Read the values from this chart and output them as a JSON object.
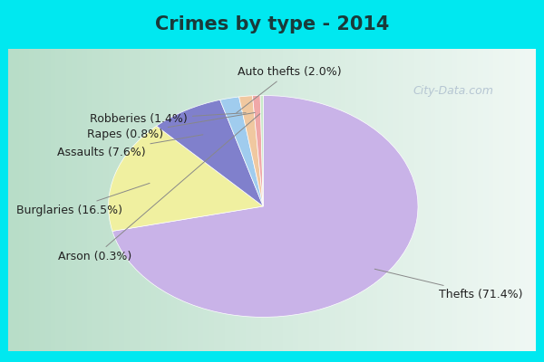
{
  "title": "Crimes by type - 2014",
  "slices": [
    {
      "label": "Thefts (71.4%)",
      "value": 71.4,
      "color": "#c9b3e8"
    },
    {
      "label": "Burglaries (16.5%)",
      "value": 16.5,
      "color": "#f0f0a0"
    },
    {
      "label": "Assaults (7.6%)",
      "value": 7.6,
      "color": "#8080cc"
    },
    {
      "label": "Auto thefts (2.0%)",
      "value": 2.0,
      "color": "#a0ccee"
    },
    {
      "label": "Robberies (1.4%)",
      "value": 1.4,
      "color": "#f0c8a0"
    },
    {
      "label": "Rapes (0.8%)",
      "value": 0.8,
      "color": "#f0a8a8"
    },
    {
      "label": "Arson (0.3%)",
      "value": 0.3,
      "color": "#c8e8c8"
    }
  ],
  "cyan_bar_color": "#00e8f0",
  "inner_bg_left": "#b8ddc8",
  "inner_bg_right": "#e8f0ee",
  "title_fontsize": 15,
  "label_fontsize": 9,
  "watermark": "City-Data.com",
  "watermark_color": "#aabbcc"
}
